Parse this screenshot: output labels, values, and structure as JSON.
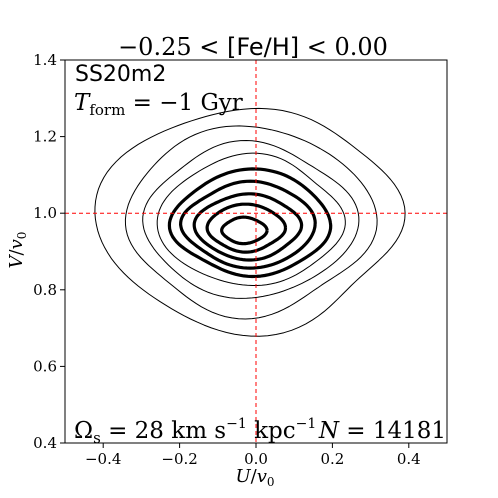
{
  "chart_data": {
    "type": "contour",
    "title_parts": {
      "left": "−0.25 < ",
      "middle": "[Fe/H]",
      "right": " < 0.00"
    },
    "xlabel": {
      "main": "U",
      "sep": "/",
      "var": "v",
      "sub": "0"
    },
    "ylabel": {
      "main": "V",
      "sep": "/",
      "var": "v",
      "sub": "0"
    },
    "xlim": [
      -0.5,
      0.5
    ],
    "ylim": [
      0.4,
      1.4
    ],
    "xticks": [
      -0.4,
      -0.2,
      0.0,
      0.2,
      0.4
    ],
    "xtick_labels": [
      "−0.4",
      "−0.2",
      "0.0",
      "0.2",
      "0.4"
    ],
    "yticks": [
      0.4,
      0.6,
      0.8,
      1.0,
      1.2,
      1.4
    ],
    "ytick_labels": [
      "0.4",
      "0.6",
      "0.8",
      "1.0",
      "1.2",
      "1.4"
    ],
    "reference_lines": {
      "x": 0.0,
      "y": 1.0,
      "color": "#ff0000",
      "style": "dashed"
    },
    "annotations": {
      "model": "SS20m2",
      "tform": {
        "var": "T",
        "sub": "form",
        "value": " = −1 Gyr"
      },
      "omega": {
        "var": "Ω",
        "sub": "s",
        "value": " = 28 km s",
        "exp1": "−1",
        "unit2": " kpc",
        "exp2": "−1"
      },
      "count": {
        "var": "N",
        "value": " = 14181"
      }
    },
    "contours": [
      {
        "level": 1,
        "weight": "thin",
        "cx": -0.013,
        "cy": 0.985,
        "rx": 0.375,
        "ry": 0.275,
        "wobble": 0.03
      },
      {
        "level": 2,
        "weight": "thin",
        "cx": -0.01,
        "cy": 0.983,
        "rx": 0.305,
        "ry": 0.232,
        "wobble": 0.028
      },
      {
        "level": 3,
        "weight": "thin",
        "cx": -0.01,
        "cy": 0.98,
        "rx": 0.262,
        "ry": 0.19,
        "wobble": 0.022
      },
      {
        "level": 4,
        "weight": "thin",
        "cx": -0.01,
        "cy": 0.98,
        "rx": 0.228,
        "ry": 0.16,
        "wobble": 0.02
      },
      {
        "level": 5,
        "weight": "thick",
        "cx": -0.01,
        "cy": 0.975,
        "rx": 0.195,
        "ry": 0.13,
        "wobble": 0.018
      },
      {
        "level": 6,
        "weight": "thick",
        "cx": -0.015,
        "cy": 0.97,
        "rx": 0.163,
        "ry": 0.105,
        "wobble": 0.016
      },
      {
        "level": 7,
        "weight": "thick",
        "cx": -0.02,
        "cy": 0.965,
        "rx": 0.13,
        "ry": 0.08,
        "wobble": 0.015
      },
      {
        "level": 8,
        "weight": "thick",
        "cx": -0.025,
        "cy": 0.962,
        "rx": 0.095,
        "ry": 0.058,
        "wobble": 0.012
      },
      {
        "level": 9,
        "weight": "thick",
        "cx": -0.03,
        "cy": 0.955,
        "rx": 0.055,
        "ry": 0.032,
        "wobble": 0.01
      }
    ],
    "colors": {
      "contour": "#000000",
      "reference": "#ff0000",
      "frame": "#000000"
    }
  }
}
